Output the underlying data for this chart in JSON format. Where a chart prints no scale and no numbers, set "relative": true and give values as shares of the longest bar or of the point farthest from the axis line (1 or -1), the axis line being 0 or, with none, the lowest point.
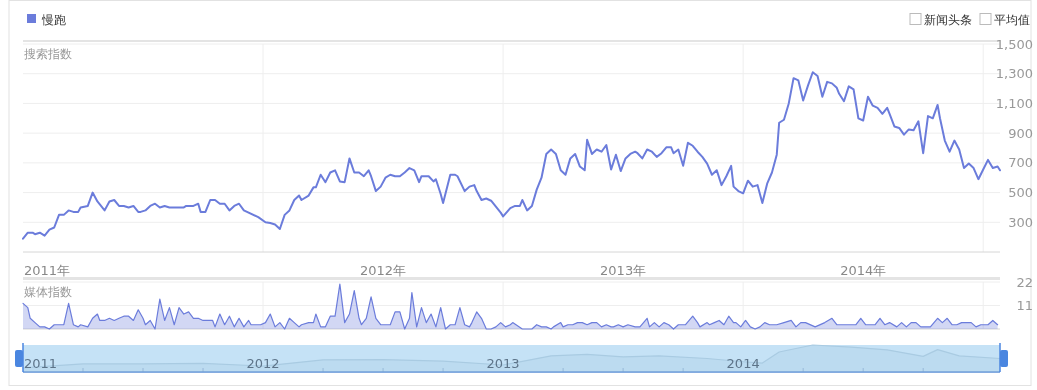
{
  "chart_data": [
    {
      "type": "line",
      "ylabel": "搜索指数",
      "legend": "top left",
      "grid": true,
      "annotations": [
        "新闻头条",
        "平均值"
      ],
      "xlim": [
        2011,
        2015.07
      ],
      "ylim": [
        100,
        1500
      ],
      "xticks": [
        {
          "value": 2011,
          "label": "2011年"
        },
        {
          "value": 2012,
          "label": null
        },
        {
          "value": 2012.5,
          "label": "2012年"
        },
        {
          "value": 2013,
          "label": null
        },
        {
          "value": 2013.5,
          "label": "2013年"
        },
        {
          "value": 2014,
          "label": null
        },
        {
          "value": 2014.5,
          "label": "2014年"
        },
        {
          "value": 2015,
          "label": null
        }
      ],
      "yticks": [
        {
          "value": 300,
          "label": "300"
        },
        {
          "value": 500,
          "label": "500"
        },
        {
          "value": 700,
          "label": "700"
        },
        {
          "value": 900,
          "label": "900"
        },
        {
          "value": 1100,
          "label": "1,100"
        },
        {
          "value": 1300,
          "label": "1,300"
        },
        {
          "value": 1500,
          "label": "1,500"
        }
      ],
      "x": [
        2011.0,
        2011.02,
        2011.04,
        2011.05,
        2011.07,
        2011.09,
        2011.11,
        2011.13,
        2011.15,
        2011.17,
        2011.19,
        2011.21,
        2011.23,
        2011.24,
        2011.27,
        2011.29,
        2011.31,
        2011.32,
        2011.34,
        2011.36,
        2011.38,
        2011.4,
        2011.42,
        2011.44,
        2011.46,
        2011.48,
        2011.49,
        2011.51,
        2011.53,
        2011.55,
        2011.57,
        2011.59,
        2011.61,
        2011.67,
        2011.68,
        2011.71,
        2011.73,
        2011.74,
        2011.76,
        2011.78,
        2011.8,
        2011.82,
        2011.84,
        2011.86,
        2011.88,
        2011.9,
        2011.92,
        2011.98,
        2012.01,
        2012.03,
        2012.05,
        2012.07,
        2012.09,
        2012.11,
        2012.13,
        2012.15,
        2012.16,
        2012.19,
        2012.21,
        2012.22,
        2012.24,
        2012.26,
        2012.28,
        2012.3,
        2012.32,
        2012.34,
        2012.36,
        2012.38,
        2012.4,
        2012.42,
        2012.44,
        2012.45,
        2012.47,
        2012.49,
        2012.51,
        2012.53,
        2012.55,
        2012.57,
        2012.59,
        2012.61,
        2012.63,
        2012.65,
        2012.66,
        2012.69,
        2012.71,
        2012.72,
        2012.74,
        2012.75,
        2012.78,
        2012.8,
        2012.81,
        2012.84,
        2012.86,
        2012.88,
        2012.89,
        2012.91,
        2012.93,
        2012.95,
        2012.97,
        2012.99,
        2013.0,
        2013.03,
        2013.05,
        2013.07,
        2013.08,
        2013.1,
        2013.12,
        2013.14,
        2013.16,
        2013.18,
        2013.2,
        2013.22,
        2013.24,
        2013.26,
        2013.28,
        2013.3,
        2013.32,
        2013.34,
        2013.35,
        2013.37,
        2013.39,
        2013.41,
        2013.43,
        2013.45,
        2013.47,
        2013.49,
        2013.51,
        2013.53,
        2013.55,
        2013.56,
        2013.58,
        2013.6,
        2013.62,
        2013.64,
        2013.66,
        2013.68,
        2013.7,
        2013.71,
        2013.73,
        2013.75,
        2013.77,
        2013.79,
        2013.81,
        2013.83,
        2013.85,
        2013.87,
        2013.89,
        2013.91,
        2013.93,
        2013.95,
        2013.96,
        2013.98,
        2014.0,
        2014.02,
        2014.04,
        2014.06,
        2014.08,
        2014.1,
        2014.12,
        2014.14,
        2014.15,
        2014.17,
        2014.19,
        2014.21,
        2014.23,
        2014.25,
        2014.27,
        2014.29,
        2014.31,
        2014.33,
        2014.35,
        2014.37,
        2014.39,
        2014.4,
        2014.42,
        2014.44,
        2014.46,
        2014.48,
        2014.5,
        2014.52,
        2014.54,
        2014.56,
        2014.58,
        2014.6,
        2014.61,
        2014.63,
        2014.65,
        2014.67,
        2014.69,
        2014.71,
        2014.73,
        2014.75,
        2014.77,
        2014.79,
        2014.81,
        2014.82,
        2014.84,
        2014.86,
        2014.88,
        2014.9,
        2014.92,
        2014.94,
        2014.96,
        2014.98,
        2015.0,
        2015.02,
        2015.04,
        2015.06,
        2015.07
      ],
      "series": [
        {
          "name": "慢跑",
          "color": "#6b7cdb",
          "values": [
            190,
            230,
            230,
            220,
            230,
            210,
            250,
            265,
            350,
            350,
            380,
            370,
            370,
            400,
            410,
            500,
            440,
            420,
            380,
            440,
            450,
            410,
            410,
            400,
            410,
            370,
            370,
            380,
            410,
            425,
            400,
            410,
            400,
            400,
            410,
            410,
            425,
            370,
            370,
            450,
            450,
            425,
            425,
            380,
            410,
            425,
            380,
            335,
            300,
            295,
            285,
            255,
            350,
            380,
            450,
            480,
            450,
            480,
            535,
            535,
            620,
            570,
            635,
            650,
            575,
            570,
            730,
            635,
            635,
            610,
            650,
            610,
            510,
            540,
            600,
            620,
            610,
            610,
            635,
            665,
            650,
            570,
            610,
            610,
            575,
            590,
            490,
            430,
            620,
            620,
            610,
            510,
            540,
            550,
            510,
            450,
            460,
            445,
            405,
            365,
            340,
            395,
            410,
            410,
            450,
            380,
            410,
            520,
            600,
            760,
            790,
            760,
            650,
            620,
            730,
            760,
            675,
            650,
            855,
            760,
            790,
            775,
            820,
            655,
            755,
            645,
            730,
            760,
            775,
            765,
            730,
            790,
            775,
            740,
            765,
            805,
            805,
            765,
            790,
            680,
            835,
            815,
            775,
            740,
            695,
            620,
            650,
            550,
            610,
            680,
            540,
            510,
            495,
            580,
            540,
            550,
            430,
            560,
            635,
            755,
            970,
            990,
            1100,
            1270,
            1255,
            1120,
            1220,
            1310,
            1285,
            1145,
            1245,
            1235,
            1205,
            1165,
            1115,
            1215,
            1195,
            1000,
            985,
            1145,
            1085,
            1070,
            1030,
            1070,
            1030,
            945,
            935,
            890,
            925,
            920,
            980,
            765,
            1015,
            1000,
            1090,
            1000,
            850,
            775,
            850,
            790,
            665,
            695,
            665,
            590,
            655,
            720,
            665,
            675,
            650
          ]
        }
      ]
    },
    {
      "type": "area",
      "ylabel": "媒体指数",
      "grid": true,
      "tick_labels": "y",
      "xlim": [
        2011,
        2015.07
      ],
      "ylim": [
        0,
        22
      ],
      "xticks": [
        {
          "value": 2012,
          "label": null
        },
        {
          "value": 2013,
          "label": null
        },
        {
          "value": 2014,
          "label": null
        },
        {
          "value": 2015,
          "label": null
        }
      ],
      "yticks": [
        11,
        22
      ],
      "x": [
        2011.0,
        2011.02,
        2011.03,
        2011.05,
        2011.07,
        2011.09,
        2011.11,
        2011.13,
        2011.15,
        2011.17,
        2011.19,
        2011.21,
        2011.23,
        2011.24,
        2011.27,
        2011.29,
        2011.31,
        2011.32,
        2011.34,
        2011.36,
        2011.38,
        2011.4,
        2011.42,
        2011.44,
        2011.46,
        2011.48,
        2011.5,
        2011.51,
        2011.53,
        2011.55,
        2011.57,
        2011.59,
        2011.61,
        2011.63,
        2011.65,
        2011.67,
        2011.69,
        2011.71,
        2011.73,
        2011.75,
        2011.79,
        2011.8,
        2011.82,
        2011.84,
        2011.86,
        2011.88,
        2011.9,
        2011.92,
        2011.94,
        2011.95,
        2011.97,
        2011.99,
        2012.01,
        2012.03,
        2012.05,
        2012.07,
        2012.09,
        2012.11,
        2012.13,
        2012.15,
        2012.16,
        2012.19,
        2012.21,
        2012.22,
        2012.24,
        2012.26,
        2012.28,
        2012.3,
        2012.32,
        2012.34,
        2012.36,
        2012.38,
        2012.4,
        2012.41,
        2012.43,
        2012.45,
        2012.47,
        2012.49,
        2012.51,
        2012.53,
        2012.55,
        2012.57,
        2012.59,
        2012.61,
        2012.62,
        2012.64,
        2012.66,
        2012.68,
        2012.7,
        2012.72,
        2012.74,
        2012.76,
        2012.78,
        2012.8,
        2012.82,
        2012.84,
        2012.86,
        2012.87,
        2012.89,
        2012.91,
        2012.93,
        2012.95,
        2012.97,
        2012.99,
        2013.01,
        2013.03,
        2013.04,
        2013.08,
        2013.12,
        2013.14,
        2013.16,
        2013.18,
        2013.2,
        2013.21,
        2013.24,
        2013.25,
        2013.27,
        2013.29,
        2013.31,
        2013.33,
        2013.35,
        2013.37,
        2013.39,
        2013.41,
        2013.43,
        2013.45,
        2013.46,
        2013.48,
        2013.5,
        2013.52,
        2013.55,
        2013.57,
        2013.6,
        2013.61,
        2013.63,
        2013.65,
        2013.67,
        2013.69,
        2013.71,
        2013.73,
        2013.76,
        2013.79,
        2013.81,
        2013.82,
        2013.85,
        2013.86,
        2013.88,
        2013.9,
        2013.92,
        2013.94,
        2013.96,
        2013.97,
        2013.99,
        2014.01,
        2014.03,
        2014.05,
        2014.07,
        2014.09,
        2014.11,
        2014.14,
        2014.17,
        2014.2,
        2014.22,
        2014.24,
        2014.26,
        2014.3,
        2014.34,
        2014.37,
        2014.39,
        2014.43,
        2014.47,
        2014.49,
        2014.51,
        2014.55,
        2014.57,
        2014.59,
        2014.61,
        2014.64,
        2014.66,
        2014.68,
        2014.7,
        2014.72,
        2014.74,
        2014.78,
        2014.81,
        2014.83,
        2014.85,
        2014.87,
        2014.89,
        2014.91,
        2014.95,
        2014.97,
        2014.99,
        2015.02,
        2015.04,
        2015.06
      ],
      "series": [
        {
          "color": "#6b7cdb",
          "values": [
            12,
            10,
            5,
            3,
            1,
            1,
            0,
            2,
            2,
            2,
            12,
            2,
            1,
            2,
            1,
            5,
            7,
            4,
            4,
            5,
            4,
            5,
            6,
            6,
            4,
            9,
            5,
            2,
            4,
            0,
            14,
            4,
            10,
            2,
            10,
            7,
            8,
            5,
            5,
            4,
            4,
            1,
            7,
            2,
            6,
            1,
            5,
            1,
            4,
            2,
            2,
            2,
            3,
            7,
            1,
            3,
            0,
            5,
            3,
            1,
            2,
            3,
            3,
            7,
            1,
            1,
            6,
            6,
            21,
            3,
            7,
            18,
            5,
            2,
            5,
            15,
            5,
            2,
            2,
            2,
            8,
            8,
            0,
            5,
            17,
            1,
            10,
            3,
            7,
            1,
            10,
            0,
            2,
            2,
            10,
            2,
            1,
            3,
            8,
            5,
            0,
            0,
            1,
            3,
            1,
            2,
            3,
            0,
            0,
            2,
            1,
            1,
            0,
            1,
            3,
            1,
            2,
            2,
            3,
            3,
            2,
            3,
            3,
            1,
            2,
            1,
            1,
            2,
            1,
            2,
            1,
            1,
            5,
            1,
            3,
            1,
            3,
            2,
            0,
            2,
            2,
            6,
            3,
            1,
            3,
            2,
            3,
            4,
            2,
            6,
            3,
            3,
            1,
            4,
            1,
            0,
            1,
            3,
            2,
            2,
            3,
            4,
            1,
            3,
            3,
            1,
            3,
            5,
            2,
            2,
            2,
            5,
            2,
            2,
            5,
            2,
            3,
            1,
            3,
            1,
            3,
            3,
            1,
            1,
            5,
            3,
            5,
            2,
            2,
            3,
            3,
            1,
            2,
            2,
            4,
            2
          ]
        }
      ]
    },
    {
      "type": "area",
      "relative": true,
      "tick_labels": "x",
      "xlim": [
        2011,
        2015.07
      ],
      "xticks": [
        {
          "value": 2011,
          "label": "2011"
        },
        {
          "value": 2011.25,
          "label": null
        },
        {
          "value": 2011.5,
          "label": null
        },
        {
          "value": 2011.75,
          "label": null
        },
        {
          "value": 2012,
          "label": "2012"
        },
        {
          "value": 2012.25,
          "label": null
        },
        {
          "value": 2012.5,
          "label": null
        },
        {
          "value": 2012.75,
          "label": null
        },
        {
          "value": 2013,
          "label": "2013"
        },
        {
          "value": 2013.25,
          "label": null
        },
        {
          "value": 2013.5,
          "label": null
        },
        {
          "value": 2013.75,
          "label": null
        },
        {
          "value": 2014,
          "label": "2014"
        },
        {
          "value": 2014.25,
          "label": null
        },
        {
          "value": 2014.5,
          "label": null
        },
        {
          "value": 2014.75,
          "label": null
        }
      ],
      "x": [
        2011.0,
        2011.25,
        2011.5,
        2011.75,
        2012.0,
        2012.25,
        2012.5,
        2012.75,
        2013.0,
        2013.2,
        2013.35,
        2013.5,
        2013.65,
        2013.85,
        2014.0,
        2014.08,
        2014.15,
        2014.29,
        2014.45,
        2014.6,
        2014.75,
        2014.81,
        2014.9,
        2015.07
      ],
      "series": [
        {
          "color": "#a9cbe2",
          "values": [
            0.15,
            0.3,
            0.3,
            0.32,
            0.22,
            0.45,
            0.46,
            0.4,
            0.26,
            0.6,
            0.65,
            0.56,
            0.6,
            0.5,
            0.38,
            0.33,
            0.74,
            1,
            0.92,
            0.82,
            0.58,
            0.83,
            0.6,
            0.5
          ]
        }
      ]
    }
  ]
}
